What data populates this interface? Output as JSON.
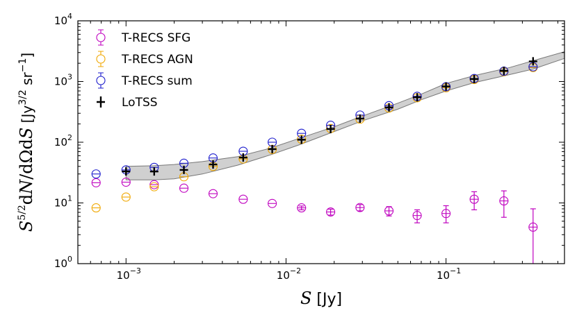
{
  "chart_data": {
    "type": "scatter",
    "title": "",
    "xlabel": "S [Jy]",
    "ylabel": "S^{5/2} dN/dΩdS [Jy^{3/2} sr^{-1}]",
    "xscale": "log",
    "yscale": "log",
    "xlim": [
      0.0005,
      0.55
    ],
    "ylim": [
      1,
      10000
    ],
    "x_ticks": [
      {
        "value": 0.001,
        "base": "10",
        "exp": "-3"
      },
      {
        "value": 0.01,
        "base": "10",
        "exp": "-2"
      },
      {
        "value": 0.1,
        "base": "10",
        "exp": "-1"
      }
    ],
    "y_ticks": [
      {
        "value": 1,
        "base": "10",
        "exp": "0"
      },
      {
        "value": 10,
        "base": "10",
        "exp": "1"
      },
      {
        "value": 100,
        "base": "10",
        "exp": "2"
      },
      {
        "value": 1000,
        "base": "10",
        "exp": "3"
      },
      {
        "value": 10000,
        "base": "10",
        "exp": "4"
      }
    ],
    "legend_position": "top-left",
    "band": {
      "name": "LoTSS uncertainty band",
      "color": "#c8c8c8",
      "upper": [
        [
          0.001,
          40
        ],
        [
          0.0015,
          41
        ],
        [
          0.002,
          43
        ],
        [
          0.003,
          48
        ],
        [
          0.005,
          58
        ],
        [
          0.008,
          80
        ],
        [
          0.012,
          115
        ],
        [
          0.02,
          180
        ],
        [
          0.03,
          270
        ],
        [
          0.05,
          440
        ],
        [
          0.07,
          620
        ],
        [
          0.1,
          930
        ],
        [
          0.15,
          1250
        ],
        [
          0.25,
          1700
        ],
        [
          0.35,
          2200
        ],
        [
          0.55,
          3100
        ]
      ],
      "lower": [
        [
          0.001,
          24
        ],
        [
          0.0015,
          24
        ],
        [
          0.002,
          25
        ],
        [
          0.003,
          30
        ],
        [
          0.005,
          42
        ],
        [
          0.008,
          62
        ],
        [
          0.012,
          90
        ],
        [
          0.02,
          150
        ],
        [
          0.03,
          225
        ],
        [
          0.05,
          350
        ],
        [
          0.07,
          500
        ],
        [
          0.1,
          700
        ],
        [
          0.15,
          960
        ],
        [
          0.25,
          1300
        ],
        [
          0.35,
          1600
        ],
        [
          0.55,
          2400
        ]
      ]
    },
    "series": [
      {
        "name": "T-RECS SFG",
        "color": "#bf00bf",
        "marker": "circle",
        "x": [
          0.00065,
          0.001,
          0.0015,
          0.0023,
          0.0035,
          0.0054,
          0.0082,
          0.0125,
          0.019,
          0.029,
          0.044,
          0.066,
          0.1,
          0.15,
          0.23,
          0.35
        ],
        "y": [
          21.5,
          22,
          20,
          17.5,
          14.2,
          11.5,
          9.8,
          8.3,
          7.1,
          8.4,
          7.4,
          6.2,
          6.7,
          11.5,
          10.8,
          4.0
        ],
        "yerr_low": [
          0,
          0,
          0,
          0,
          0,
          0,
          0,
          0.6,
          0.8,
          1.0,
          1.3,
          1.5,
          2.0,
          3.8,
          5.0,
          3.0
        ],
        "yerr_high": [
          0,
          0,
          0,
          0,
          0,
          0,
          0,
          0.6,
          0.8,
          1.0,
          1.3,
          1.5,
          2.3,
          3.8,
          5.0,
          4.0
        ]
      },
      {
        "name": "T-RECS AGN",
        "color": "#f0a700",
        "marker": "circle",
        "x": [
          0.00065,
          0.001,
          0.0015,
          0.0023,
          0.0035,
          0.0054,
          0.0082,
          0.0125,
          0.019,
          0.029,
          0.044,
          0.066,
          0.1,
          0.15,
          0.23,
          0.35
        ],
        "y": [
          8.3,
          12.5,
          18.5,
          27,
          40,
          53,
          76,
          112,
          168,
          240,
          365,
          540,
          790,
          1080,
          1450,
          1700
        ]
      },
      {
        "name": "T-RECS sum",
        "color": "#1a1acc",
        "marker": "circle",
        "x": [
          0.00065,
          0.001,
          0.0015,
          0.0023,
          0.0035,
          0.0054,
          0.0082,
          0.0125,
          0.019,
          0.029,
          0.044,
          0.066,
          0.1,
          0.15,
          0.23,
          0.35
        ],
        "y": [
          30,
          35,
          38.5,
          45,
          55,
          71,
          100,
          140,
          190,
          280,
          400,
          570,
          820,
          1120,
          1480,
          1750
        ]
      },
      {
        "name": "LoTSS",
        "color": "#000000",
        "marker": "plus",
        "x": [
          0.001,
          0.0015,
          0.0023,
          0.0035,
          0.0054,
          0.0082,
          0.0125,
          0.019,
          0.029,
          0.044,
          0.066,
          0.1,
          0.15,
          0.23,
          0.35
        ],
        "y": [
          33,
          33,
          35,
          43,
          56,
          77,
          110,
          165,
          245,
          375,
          550,
          830,
          1100,
          1500,
          2150
        ]
      }
    ]
  }
}
